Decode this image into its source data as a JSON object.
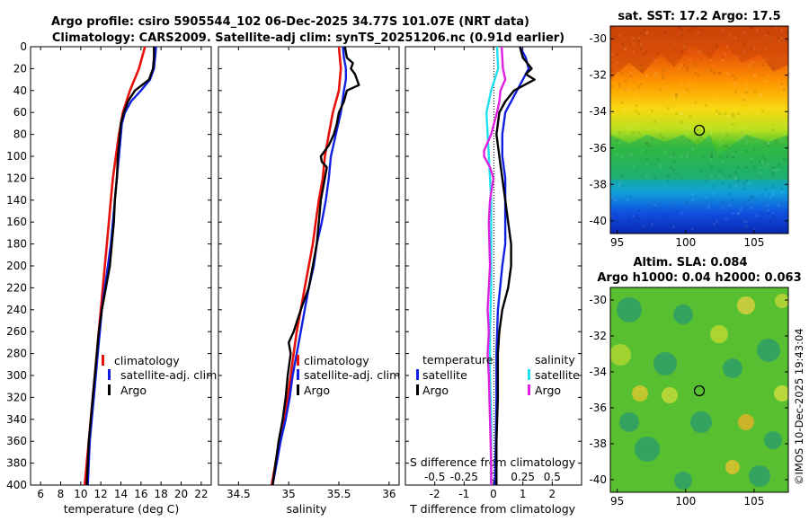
{
  "title": {
    "line1": "Argo profile: csiro 5905544_102 06-Dec-2025 34.77S 101.07E (NRT data)",
    "line2": "Climatology: CARS2009. Satellite-adj clim: synTS_20251206.nc (0.91d earlier)"
  },
  "colors": {
    "climatology": "#e8100a",
    "satellite": "#1020e0",
    "argo": "#000000",
    "salinity_satellite": "#20e0f0",
    "salinity_argo": "#e020e0"
  },
  "depth_ticks": [
    0,
    20,
    40,
    60,
    80,
    100,
    120,
    140,
    160,
    180,
    200,
    220,
    240,
    260,
    280,
    300,
    320,
    340,
    360,
    380,
    400
  ],
  "legend": {
    "climatology": "climatology",
    "satellite_adj": "satellite-adj. clim",
    "argo": "Argo",
    "temperature_header": "temperature",
    "salinity_header": "salinity",
    "satellite": "satellite"
  },
  "chart_data": [
    {
      "type": "line",
      "name": "temperature-profile",
      "xlabel": "temperature (deg C)",
      "ylabel": "depth",
      "xlim": [
        5,
        23
      ],
      "ylim": [
        400,
        0
      ],
      "xticks": [
        6,
        8,
        10,
        12,
        14,
        16,
        18,
        20,
        22
      ],
      "series": [
        {
          "name": "climatology",
          "depth": [
            0,
            20,
            40,
            60,
            80,
            100,
            120,
            140,
            160,
            180,
            200,
            220,
            240,
            260,
            280,
            300,
            320,
            340,
            360,
            380,
            400
          ],
          "values": [
            16.4,
            15.8,
            14.9,
            14.2,
            13.8,
            13.5,
            13.2,
            13.0,
            12.8,
            12.6,
            12.4,
            12.2,
            12.0,
            11.8,
            11.6,
            11.4,
            11.2,
            11.0,
            10.8,
            10.6,
            10.4
          ]
        },
        {
          "name": "satellite-adj. clim",
          "depth": [
            0,
            10,
            20,
            30,
            40,
            50,
            60,
            70,
            80,
            90,
            100,
            120,
            140,
            160,
            180,
            200,
            220,
            240,
            260,
            280,
            300,
            320,
            340,
            360,
            380,
            400
          ],
          "values": [
            17.5,
            17.4,
            17.3,
            16.9,
            16.0,
            15.0,
            14.4,
            14.1,
            14.0,
            13.9,
            13.8,
            13.6,
            13.4,
            13.2,
            13.0,
            12.7,
            12.4,
            12.1,
            11.9,
            11.7,
            11.5,
            11.3,
            11.1,
            10.9,
            10.8,
            10.7
          ]
        },
        {
          "name": "Argo",
          "depth": [
            0,
            10,
            20,
            30,
            40,
            50,
            60,
            70,
            80,
            90,
            100,
            120,
            140,
            160,
            180,
            200,
            220,
            240,
            260,
            280,
            300,
            320,
            340,
            360,
            380,
            400
          ],
          "values": [
            17.3,
            17.3,
            17.2,
            16.8,
            15.4,
            14.7,
            14.3,
            14.0,
            13.9,
            13.8,
            13.7,
            13.6,
            13.4,
            13.3,
            13.1,
            12.9,
            12.5,
            12.1,
            11.8,
            11.6,
            11.4,
            11.2,
            11.0,
            10.8,
            10.7,
            10.6
          ]
        }
      ]
    },
    {
      "type": "line",
      "name": "salinity-profile",
      "xlabel": "salinity",
      "xlim": [
        34.3,
        36.1
      ],
      "ylim": [
        400,
        0
      ],
      "xticks": [
        34.5,
        35,
        35.5,
        36
      ],
      "xticklabels": [
        "34.5",
        "35",
        "35.5",
        "36"
      ],
      "series": [
        {
          "name": "climatology",
          "depth": [
            0,
            20,
            40,
            60,
            80,
            100,
            120,
            140,
            160,
            180,
            200,
            220,
            240,
            260,
            280,
            300,
            320,
            340,
            360,
            380,
            400
          ],
          "values": [
            35.5,
            35.52,
            35.5,
            35.44,
            35.4,
            35.36,
            35.34,
            35.3,
            35.27,
            35.24,
            35.2,
            35.16,
            35.12,
            35.08,
            35.05,
            35.02,
            34.99,
            34.95,
            34.91,
            34.87,
            34.83
          ]
        },
        {
          "name": "satellite-adj. clim",
          "depth": [
            0,
            10,
            20,
            30,
            40,
            60,
            80,
            100,
            120,
            140,
            160,
            180,
            200,
            220,
            240,
            260,
            280,
            300,
            320,
            340,
            360,
            380,
            400
          ],
          "values": [
            35.54,
            35.55,
            35.57,
            35.57,
            35.55,
            35.52,
            35.47,
            35.42,
            35.4,
            35.37,
            35.33,
            35.28,
            35.25,
            35.2,
            35.16,
            35.12,
            35.08,
            35.04,
            35.01,
            34.97,
            34.92,
            34.88,
            34.84
          ]
        },
        {
          "name": "Argo",
          "depth": [
            0,
            10,
            15,
            20,
            25,
            30,
            35,
            40,
            50,
            60,
            70,
            80,
            90,
            100,
            105,
            110,
            120,
            140,
            160,
            180,
            200,
            220,
            240,
            260,
            270,
            280,
            300,
            320,
            340,
            360,
            380,
            400
          ],
          "values": [
            35.56,
            35.58,
            35.64,
            35.62,
            35.66,
            35.68,
            35.7,
            35.58,
            35.55,
            35.5,
            35.48,
            35.45,
            35.4,
            35.32,
            35.33,
            35.38,
            35.36,
            35.32,
            35.3,
            35.28,
            35.24,
            35.2,
            35.12,
            35.05,
            35.0,
            35.02,
            34.99,
            34.97,
            34.94,
            34.9,
            34.87,
            34.84
          ]
        }
      ]
    },
    {
      "type": "line",
      "name": "difference-profile",
      "xlabel": "T difference from climatology",
      "top_label": "S difference from climatology",
      "xlim": [
        -3,
        3
      ],
      "ylim": [
        400,
        0
      ],
      "xticks": [
        -2,
        -1,
        0,
        1,
        2
      ],
      "xticklabels": [
        "-2",
        "-1",
        "0",
        "1",
        "2"
      ],
      "s_xlim": [
        -0.75,
        0.75
      ],
      "s_ticks": [
        -0.5,
        -0.25,
        0,
        0.25,
        0.5
      ],
      "s_ticklabels": [
        "-0.5",
        "-0.25",
        "0",
        "0.25",
        "0.5"
      ],
      "series": [
        {
          "name": "temperature satellite",
          "axis": "T",
          "depth": [
            0,
            10,
            20,
            30,
            40,
            50,
            60,
            80,
            100,
            120,
            140,
            160,
            180,
            200,
            240,
            280,
            320,
            360,
            400
          ],
          "values": [
            0.9,
            1.1,
            1.2,
            1.0,
            0.8,
            0.6,
            0.4,
            0.3,
            0.3,
            0.4,
            0.4,
            0.4,
            0.4,
            0.3,
            0.15,
            0.1,
            0.1,
            0.08,
            0.05
          ]
        },
        {
          "name": "temperature Argo",
          "axis": "T",
          "depth": [
            0,
            10,
            20,
            25,
            30,
            40,
            50,
            60,
            80,
            100,
            120,
            140,
            160,
            180,
            200,
            220,
            240,
            260,
            280,
            300,
            320,
            360,
            400
          ],
          "values": [
            0.9,
            1.0,
            1.3,
            1.1,
            1.4,
            0.7,
            0.4,
            0.2,
            0.1,
            0.2,
            0.3,
            0.4,
            0.5,
            0.6,
            0.6,
            0.5,
            0.3,
            0.2,
            0.15,
            0.15,
            0.15,
            0.1,
            0.1
          ]
        },
        {
          "name": "salinity satellite",
          "axis": "S",
          "depth": [
            0,
            20,
            40,
            60,
            80,
            100,
            140,
            180,
            220,
            260,
            300,
            340,
            400
          ],
          "values": [
            0.03,
            0.04,
            -0.02,
            -0.06,
            -0.05,
            -0.04,
            -0.02,
            -0.02,
            -0.02,
            -0.03,
            -0.03,
            -0.02,
            -0.02
          ]
        },
        {
          "name": "salinity Argo",
          "axis": "S",
          "depth": [
            0,
            20,
            30,
            40,
            50,
            60,
            80,
            95,
            100,
            110,
            120,
            140,
            160,
            200,
            240,
            260,
            280,
            300,
            340,
            380,
            400
          ],
          "values": [
            0.07,
            0.08,
            0.1,
            0.06,
            0.05,
            0.03,
            -0.02,
            -0.08,
            -0.08,
            -0.03,
            0.0,
            -0.03,
            -0.04,
            -0.03,
            -0.05,
            -0.04,
            -0.05,
            -0.04,
            -0.03,
            -0.02,
            -0.02
          ]
        }
      ]
    },
    {
      "type": "heatmap",
      "name": "sst-map",
      "title": "sat. SST: 17.2  Argo: 17.5",
      "xticks": [
        95,
        100,
        105
      ],
      "yticks": [
        -30,
        -32,
        -34,
        -36,
        -38,
        -40
      ],
      "xlim": [
        94.5,
        107.5
      ],
      "ylim": [
        -40.7,
        -29.3
      ],
      "argo_position": [
        101.07,
        -34.77
      ]
    },
    {
      "type": "heatmap",
      "name": "sla-map",
      "title_line1": "Altim. SLA: 0.084",
      "title_line2": "Argo h1000: 0.04 h2000: 0.063",
      "xticks": [
        95,
        100,
        105
      ],
      "yticks": [
        -30,
        -32,
        -34,
        -36,
        -38,
        -40
      ],
      "xlim": [
        94.5,
        107.5
      ],
      "ylim": [
        -40.7,
        -29.3
      ],
      "argo_position": [
        101.07,
        -34.77
      ]
    }
  ],
  "credit": "©IMOS 10-Dec-2025 19:43:04"
}
